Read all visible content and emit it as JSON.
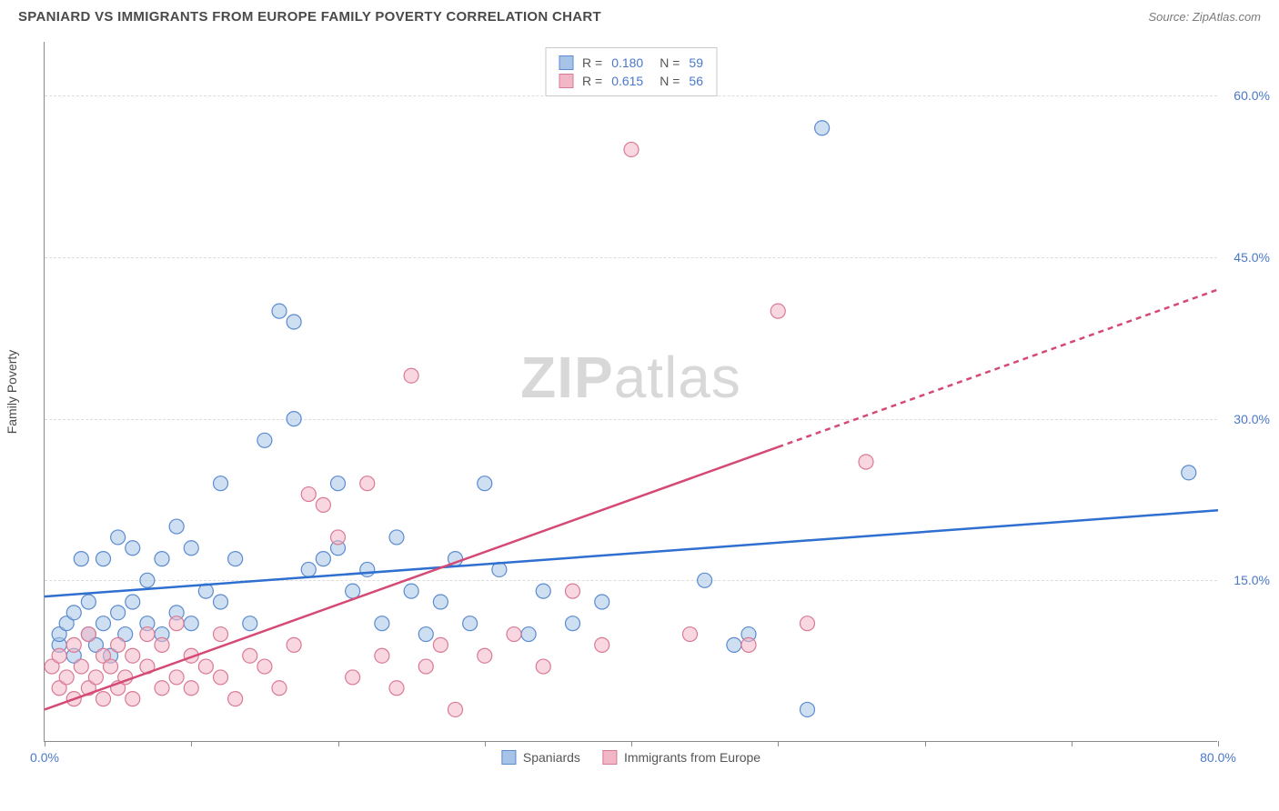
{
  "header": {
    "title": "SPANIARD VS IMMIGRANTS FROM EUROPE FAMILY POVERTY CORRELATION CHART",
    "source": "Source: ZipAtlas.com"
  },
  "chart": {
    "type": "scatter",
    "watermark": "ZIPatlas",
    "y_label": "Family Poverty",
    "x_min": 0,
    "x_max": 80,
    "y_min": 0,
    "y_max": 65,
    "x_ticks": [
      0,
      10,
      20,
      30,
      40,
      50,
      60,
      70,
      80
    ],
    "x_tick_labels": {
      "0": "0.0%",
      "80": "80.0%"
    },
    "y_ticks": [
      15,
      30,
      45,
      60
    ],
    "y_tick_labels": {
      "15": "15.0%",
      "30": "30.0%",
      "45": "45.0%",
      "60": "60.0%"
    },
    "grid_color": "#dcdcdc",
    "axis_color": "#8a8a8a",
    "tick_label_color": "#4a78c8",
    "background_color": "#ffffff",
    "marker_radius": 8,
    "series": [
      {
        "name": "Spaniards",
        "fill": "#a7c4e8",
        "stroke": "#5b8bd0",
        "fill_opacity": 0.55,
        "r_value": "0.180",
        "n_value": "59",
        "trend": {
          "x1": 0,
          "y1": 13.5,
          "x2": 80,
          "y2": 21.5,
          "color": "#2f6fd0",
          "width": 2.5,
          "dash": ""
        },
        "points": [
          [
            1,
            9
          ],
          [
            1,
            10
          ],
          [
            1.5,
            11
          ],
          [
            2,
            8
          ],
          [
            2,
            12
          ],
          [
            2.5,
            17
          ],
          [
            3,
            10
          ],
          [
            3,
            13
          ],
          [
            3.5,
            9
          ],
          [
            4,
            11
          ],
          [
            4,
            17
          ],
          [
            4.5,
            8
          ],
          [
            5,
            12
          ],
          [
            5,
            19
          ],
          [
            5.5,
            10
          ],
          [
            6,
            13
          ],
          [
            6,
            18
          ],
          [
            7,
            11
          ],
          [
            7,
            15
          ],
          [
            8,
            10
          ],
          [
            8,
            17
          ],
          [
            9,
            12
          ],
          [
            9,
            20
          ],
          [
            10,
            11
          ],
          [
            10,
            18
          ],
          [
            11,
            14
          ],
          [
            12,
            13
          ],
          [
            12,
            24
          ],
          [
            13,
            17
          ],
          [
            14,
            11
          ],
          [
            15,
            28
          ],
          [
            16,
            40
          ],
          [
            17,
            39
          ],
          [
            17,
            30
          ],
          [
            18,
            16
          ],
          [
            19,
            17
          ],
          [
            20,
            24
          ],
          [
            20,
            18
          ],
          [
            21,
            14
          ],
          [
            22,
            16
          ],
          [
            23,
            11
          ],
          [
            24,
            19
          ],
          [
            25,
            14
          ],
          [
            26,
            10
          ],
          [
            27,
            13
          ],
          [
            28,
            17
          ],
          [
            29,
            11
          ],
          [
            30,
            24
          ],
          [
            31,
            16
          ],
          [
            33,
            10
          ],
          [
            34,
            14
          ],
          [
            36,
            11
          ],
          [
            38,
            13
          ],
          [
            45,
            15
          ],
          [
            47,
            9
          ],
          [
            48,
            10
          ],
          [
            52,
            3
          ],
          [
            53,
            57
          ],
          [
            78,
            25
          ]
        ]
      },
      {
        "name": "Immigrants from Europe",
        "fill": "#f2b7c6",
        "stroke": "#d97a95",
        "fill_opacity": 0.55,
        "r_value": "0.615",
        "n_value": "56",
        "trend": {
          "x1": 0,
          "y1": 3,
          "x2": 80,
          "y2": 42,
          "color": "#d54a74",
          "width": 2.5,
          "dash_at_x": 50
        },
        "points": [
          [
            0.5,
            7
          ],
          [
            1,
            5
          ],
          [
            1,
            8
          ],
          [
            1.5,
            6
          ],
          [
            2,
            4
          ],
          [
            2,
            9
          ],
          [
            2.5,
            7
          ],
          [
            3,
            5
          ],
          [
            3,
            10
          ],
          [
            3.5,
            6
          ],
          [
            4,
            8
          ],
          [
            4,
            4
          ],
          [
            4.5,
            7
          ],
          [
            5,
            5
          ],
          [
            5,
            9
          ],
          [
            5.5,
            6
          ],
          [
            6,
            8
          ],
          [
            6,
            4
          ],
          [
            7,
            7
          ],
          [
            7,
            10
          ],
          [
            8,
            5
          ],
          [
            8,
            9
          ],
          [
            9,
            6
          ],
          [
            9,
            11
          ],
          [
            10,
            5
          ],
          [
            10,
            8
          ],
          [
            11,
            7
          ],
          [
            12,
            6
          ],
          [
            12,
            10
          ],
          [
            13,
            4
          ],
          [
            14,
            8
          ],
          [
            15,
            7
          ],
          [
            16,
            5
          ],
          [
            17,
            9
          ],
          [
            18,
            23
          ],
          [
            19,
            22
          ],
          [
            20,
            19
          ],
          [
            21,
            6
          ],
          [
            22,
            24
          ],
          [
            23,
            8
          ],
          [
            24,
            5
          ],
          [
            25,
            34
          ],
          [
            26,
            7
          ],
          [
            27,
            9
          ],
          [
            28,
            3
          ],
          [
            30,
            8
          ],
          [
            32,
            10
          ],
          [
            34,
            7
          ],
          [
            36,
            14
          ],
          [
            38,
            9
          ],
          [
            40,
            55
          ],
          [
            44,
            10
          ],
          [
            50,
            40
          ],
          [
            56,
            26
          ],
          [
            48,
            9
          ],
          [
            52,
            11
          ]
        ]
      }
    ],
    "legend_bottom": [
      {
        "label": "Spaniards",
        "fill": "#a7c4e8",
        "stroke": "#5b8bd0"
      },
      {
        "label": "Immigrants from Europe",
        "fill": "#f2b7c6",
        "stroke": "#d97a95"
      }
    ]
  }
}
